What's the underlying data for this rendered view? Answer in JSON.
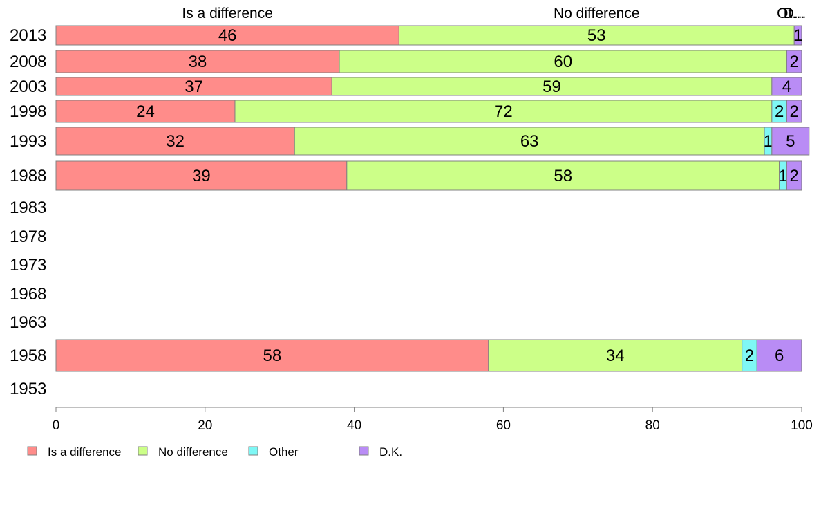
{
  "chart_data": {
    "type": "bar",
    "orientation": "horizontal",
    "stacked": true,
    "categories": [
      "2013",
      "2008",
      "2003",
      "1998",
      "1993",
      "1988",
      "1983",
      "1978",
      "1973",
      "1968",
      "1963",
      "1958",
      "1953"
    ],
    "series": [
      {
        "name": "Is a difference",
        "color": "#ff8c8a",
        "values": [
          46,
          38,
          37,
          24,
          32,
          39,
          null,
          null,
          null,
          null,
          null,
          58,
          null
        ]
      },
      {
        "name": "No difference",
        "color": "#ccff88",
        "values": [
          53,
          60,
          59,
          72,
          63,
          58,
          null,
          null,
          null,
          null,
          null,
          34,
          null
        ]
      },
      {
        "name": "Other",
        "color": "#7ef7f5",
        "values": [
          0,
          0,
          0,
          2,
          1,
          1,
          null,
          null,
          null,
          null,
          null,
          2,
          null
        ]
      },
      {
        "name": "D.K.",
        "color": "#b98cf5",
        "values": [
          1,
          2,
          4,
          2,
          5,
          2,
          null,
          null,
          null,
          null,
          null,
          6,
          null
        ]
      }
    ],
    "header_labels": [
      "Is a difference",
      "No difference",
      "Ot...",
      "D..."
    ],
    "xlim": [
      0,
      100
    ],
    "xticks": [
      "0",
      "20",
      "40",
      "60",
      "80",
      "100"
    ],
    "grid": false,
    "legend_position": "bottom-left"
  }
}
